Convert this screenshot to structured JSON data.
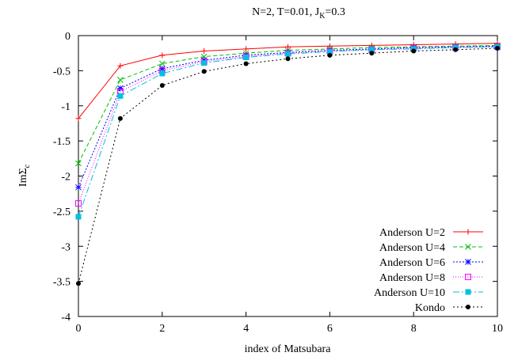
{
  "chart_data": {
    "type": "line",
    "title": "N=2, T=0.01, J",
    "title_sub": "K",
    "title_tail": "=0.3",
    "xlabel": "index of Matsubara",
    "ylabel": "ImΣ",
    "ylabel_sub": "c",
    "xlim": [
      0,
      10
    ],
    "ylim": [
      -4,
      0
    ],
    "xticks": [
      0,
      2,
      4,
      6,
      8,
      10
    ],
    "yticks": [
      0,
      -0.5,
      -1,
      -1.5,
      -2,
      -2.5,
      -3,
      -3.5,
      -4
    ],
    "ytick_labels": [
      "0",
      "-0.5",
      "-1",
      "-1.5",
      "-2",
      "-2.5",
      "-3",
      "-3.5",
      "-4"
    ],
    "legend_position": "bottom-right",
    "grid": false,
    "x": [
      0,
      1,
      2,
      3,
      4,
      5,
      6,
      7,
      8,
      9,
      10
    ],
    "series": [
      {
        "name": "Anderson U=2",
        "color": "#ff0000",
        "marker": "plus",
        "dash": "",
        "values": [
          -1.18,
          -0.43,
          -0.28,
          -0.22,
          -0.19,
          -0.16,
          -0.15,
          -0.14,
          -0.13,
          -0.12,
          -0.11
        ]
      },
      {
        "name": "Anderson U=4",
        "color": "#00c000",
        "marker": "cross",
        "dash": "5,3",
        "values": [
          -1.82,
          -0.63,
          -0.4,
          -0.3,
          -0.25,
          -0.21,
          -0.19,
          -0.17,
          -0.16,
          -0.15,
          -0.14
        ]
      },
      {
        "name": "Anderson U=6",
        "color": "#0000ff",
        "marker": "star",
        "dash": "2,2",
        "values": [
          -2.16,
          -0.75,
          -0.47,
          -0.35,
          -0.28,
          -0.24,
          -0.21,
          -0.19,
          -0.17,
          -0.16,
          -0.15
        ]
      },
      {
        "name": "Anderson U=8",
        "color": "#ff00ff",
        "marker": "square",
        "dash": "1,2",
        "values": [
          -2.39,
          -0.8,
          -0.5,
          -0.37,
          -0.3,
          -0.25,
          -0.22,
          -0.2,
          -0.18,
          -0.17,
          -0.16
        ]
      },
      {
        "name": "Anderson U=10",
        "color": "#00c0e0",
        "marker": "filled-square",
        "dash": "8,3,2,3",
        "values": [
          -2.58,
          -0.86,
          -0.54,
          -0.39,
          -0.31,
          -0.26,
          -0.23,
          -0.2,
          -0.19,
          -0.17,
          -0.16
        ]
      },
      {
        "name": "Kondo",
        "color": "#000000",
        "marker": "filled-circle",
        "dash": "2,3",
        "values": [
          -3.53,
          -1.18,
          -0.71,
          -0.51,
          -0.4,
          -0.33,
          -0.28,
          -0.25,
          -0.22,
          -0.2,
          -0.18
        ]
      }
    ]
  }
}
